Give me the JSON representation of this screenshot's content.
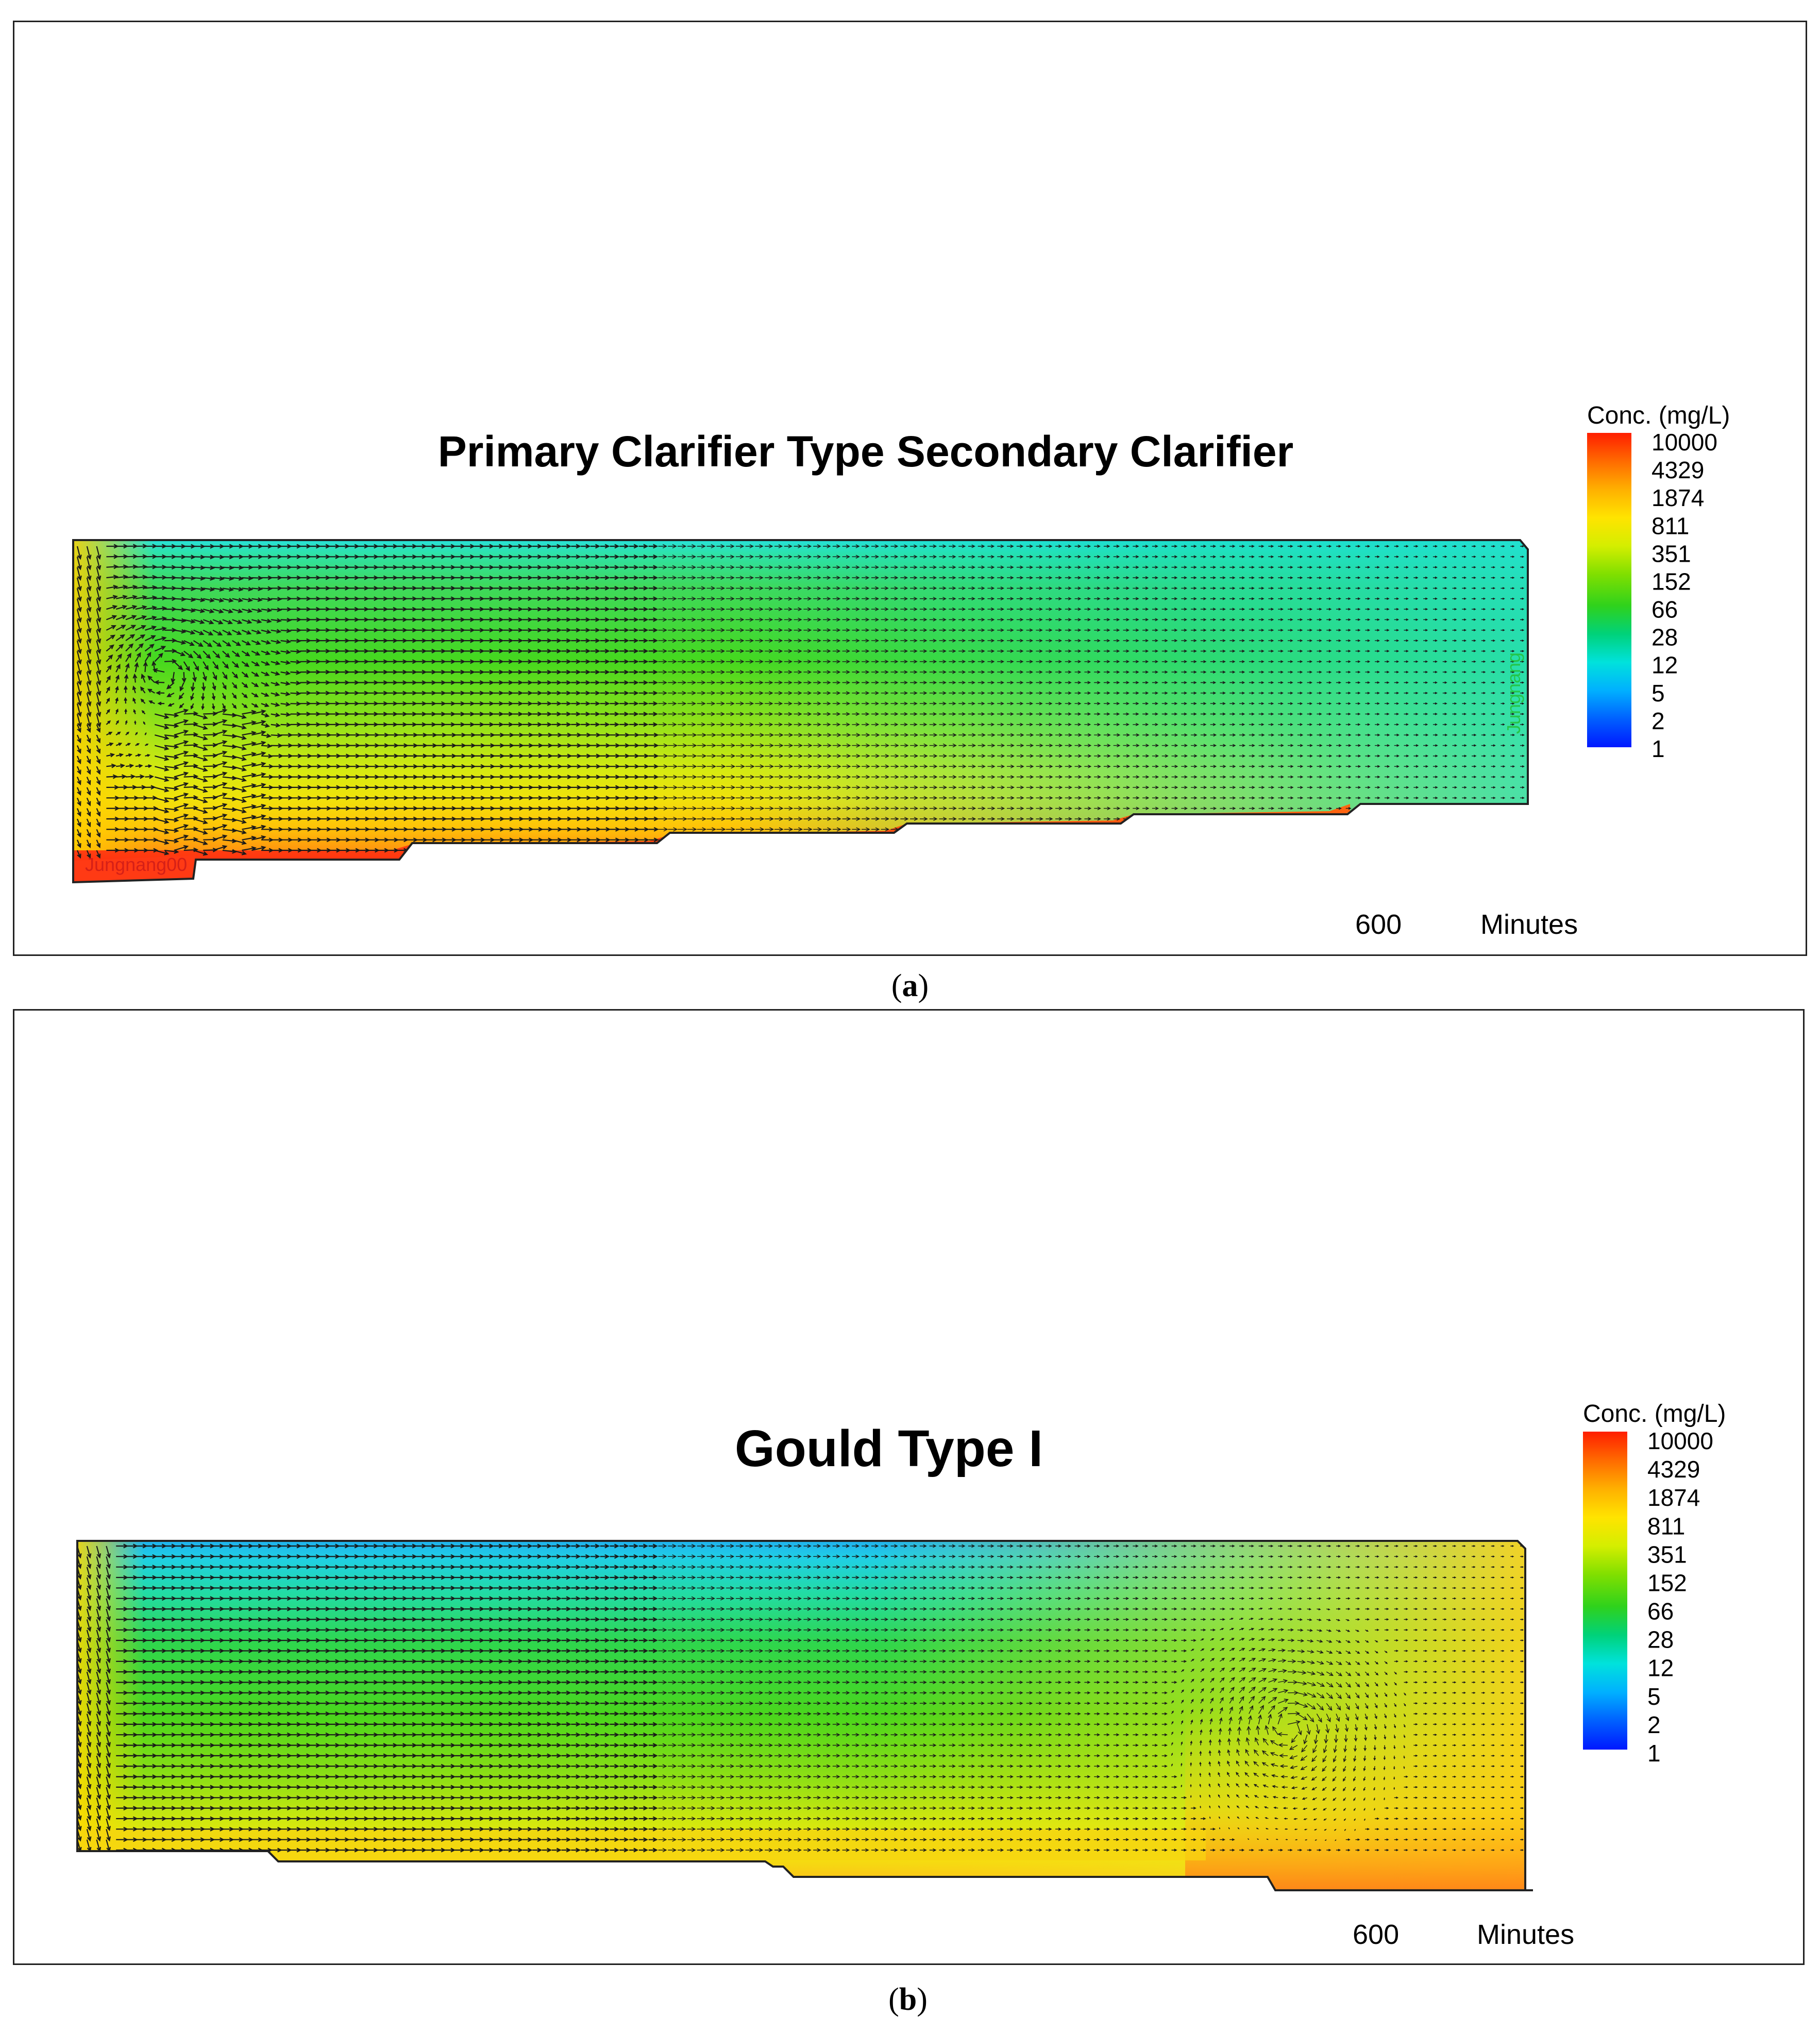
{
  "figures": [
    {
      "id": "a",
      "title": "Primary Clarifier Type Secondary Clarifier",
      "subfigure_label": "a",
      "time_value": "600",
      "time_unit": "Minutes",
      "watermark_outlet": "Jungnang",
      "watermark_inlet": "Jungnang00"
    },
    {
      "id": "b",
      "title": "Gould Type I",
      "subfigure_label": "b",
      "time_value": "600",
      "time_unit": "Minutes"
    }
  ],
  "legend": {
    "title": "Conc. (mg/L)",
    "ticks": [
      "10000",
      "4329",
      "1874",
      "811",
      "351",
      "152",
      "66",
      "28",
      "12",
      "5",
      "2",
      "1"
    ],
    "colors": [
      "#ff2a00",
      "#ff7a00",
      "#ffb300",
      "#ffe000",
      "#d8ee00",
      "#8fe000",
      "#39d400",
      "#00d060",
      "#00d8c8",
      "#00b4ff",
      "#0060ff",
      "#0020ff"
    ]
  },
  "colors": {
    "vector": "#1a1a1a",
    "outline": "#222222",
    "watermark_outlet": "#22c030",
    "watermark_inlet": "#c81818"
  }
}
